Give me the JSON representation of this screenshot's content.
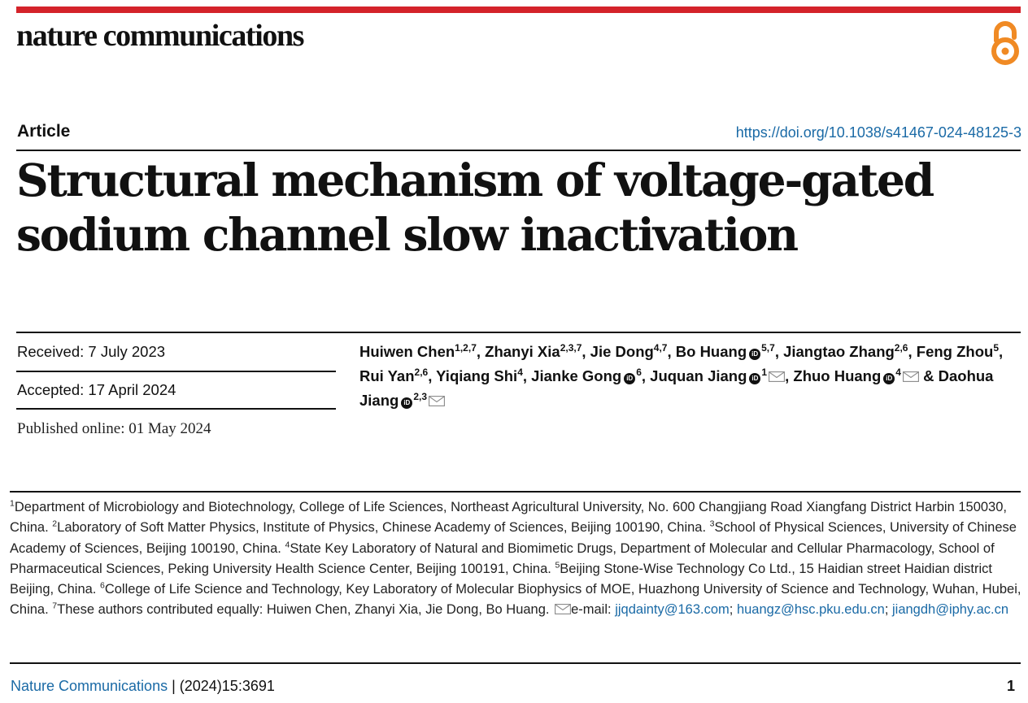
{
  "header": {
    "journal": "nature communications",
    "open_access_icon": "open-access-lock-icon",
    "accent_color": "#d4232a",
    "link_color": "#1a6aa6"
  },
  "article": {
    "type": "Article",
    "doi": "https://doi.org/10.1038/s41467-024-48125-3",
    "title_line1": "Structural mechanism of voltage-gated",
    "title_line2": "sodium channel slow inactivation"
  },
  "dates": {
    "received": "Received: 7 July 2023",
    "accepted": "Accepted: 17 April 2024",
    "published": "Published online: 01 May 2024"
  },
  "authors": [
    {
      "name": "Huiwen Chen",
      "sup": "1,2,7",
      "orcid": false,
      "email": false
    },
    {
      "name": "Zhanyi Xia",
      "sup": "2,3,7",
      "orcid": false,
      "email": false
    },
    {
      "name": "Jie Dong",
      "sup": "4,7",
      "orcid": false,
      "email": false
    },
    {
      "name": "Bo Huang",
      "sup": "5,7",
      "orcid": true,
      "email": false
    },
    {
      "name": "Jiangtao Zhang",
      "sup": "2,6",
      "orcid": false,
      "email": false
    },
    {
      "name": "Feng Zhou",
      "sup": "5",
      "orcid": false,
      "email": false
    },
    {
      "name": "Rui Yan",
      "sup": "2,6",
      "orcid": false,
      "email": false
    },
    {
      "name": "Yiqiang Shi",
      "sup": "4",
      "orcid": false,
      "email": false
    },
    {
      "name": "Jianke Gong",
      "sup": "6",
      "orcid": true,
      "email": false
    },
    {
      "name": "Juquan Jiang",
      "sup": "1",
      "orcid": true,
      "email": true
    },
    {
      "name": "Zhuo Huang",
      "sup": "4",
      "orcid": true,
      "email": true
    },
    {
      "name": "Daohua Jiang",
      "sup": "2,3",
      "orcid": true,
      "email": true
    }
  ],
  "affiliations": [
    {
      "num": "1",
      "text": "Department of Microbiology and Biotechnology, College of Life Sciences, Northeast Agricultural University, No. 600 Changjiang Road Xiangfang District Harbin 150030, China."
    },
    {
      "num": "2",
      "text": "Laboratory of Soft Matter Physics, Institute of Physics, Chinese Academy of Sciences, Beijing 100190, China."
    },
    {
      "num": "3",
      "text": "School of Physical Sciences, University of Chinese Academy of Sciences, Beijing 100190, China."
    },
    {
      "num": "4",
      "text": "State Key Laboratory of Natural and Biomimetic Drugs, Department of Molecular and Cellular Pharmacology, School of Pharmaceutical Sciences, Peking University Health Science Center, Beijing 100191, China."
    },
    {
      "num": "5",
      "text": "Beijing Stone-Wise Technology Co Ltd., 15 Haidian street Haidian district Beijing, China."
    },
    {
      "num": "6",
      "text": "College of Life Science and Technology, Key Laboratory of Molecular Biophysics of MOE, Huazhong University of Science and Technology, Wuhan, Hubei, China."
    },
    {
      "num": "7",
      "text": "These authors contributed equally: Huiwen Chen, Zhanyi Xia, Jie Dong, Bo Huang."
    }
  ],
  "email": {
    "label": "e-mail:",
    "addresses": [
      "jjqdainty@163.com",
      "huangz@hsc.pku.edu.cn",
      "jiangdh@iphy.ac.cn"
    ]
  },
  "footer": {
    "journal": "Nature Communications",
    "citation": "(2024)15:3691",
    "page": "1"
  }
}
